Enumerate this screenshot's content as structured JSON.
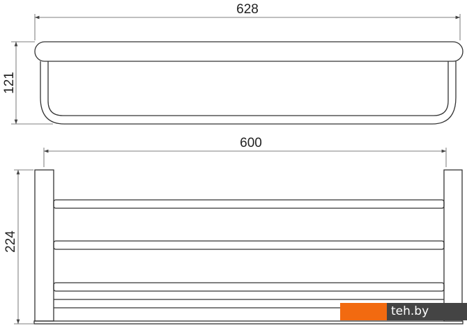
{
  "dimensions": {
    "top_width": "628",
    "top_height": "121",
    "front_width": "600",
    "front_height": "224"
  },
  "watermark": {
    "text": "teh.by",
    "colors": {
      "orange": "#f26a10",
      "dark": "#444444"
    }
  }
}
